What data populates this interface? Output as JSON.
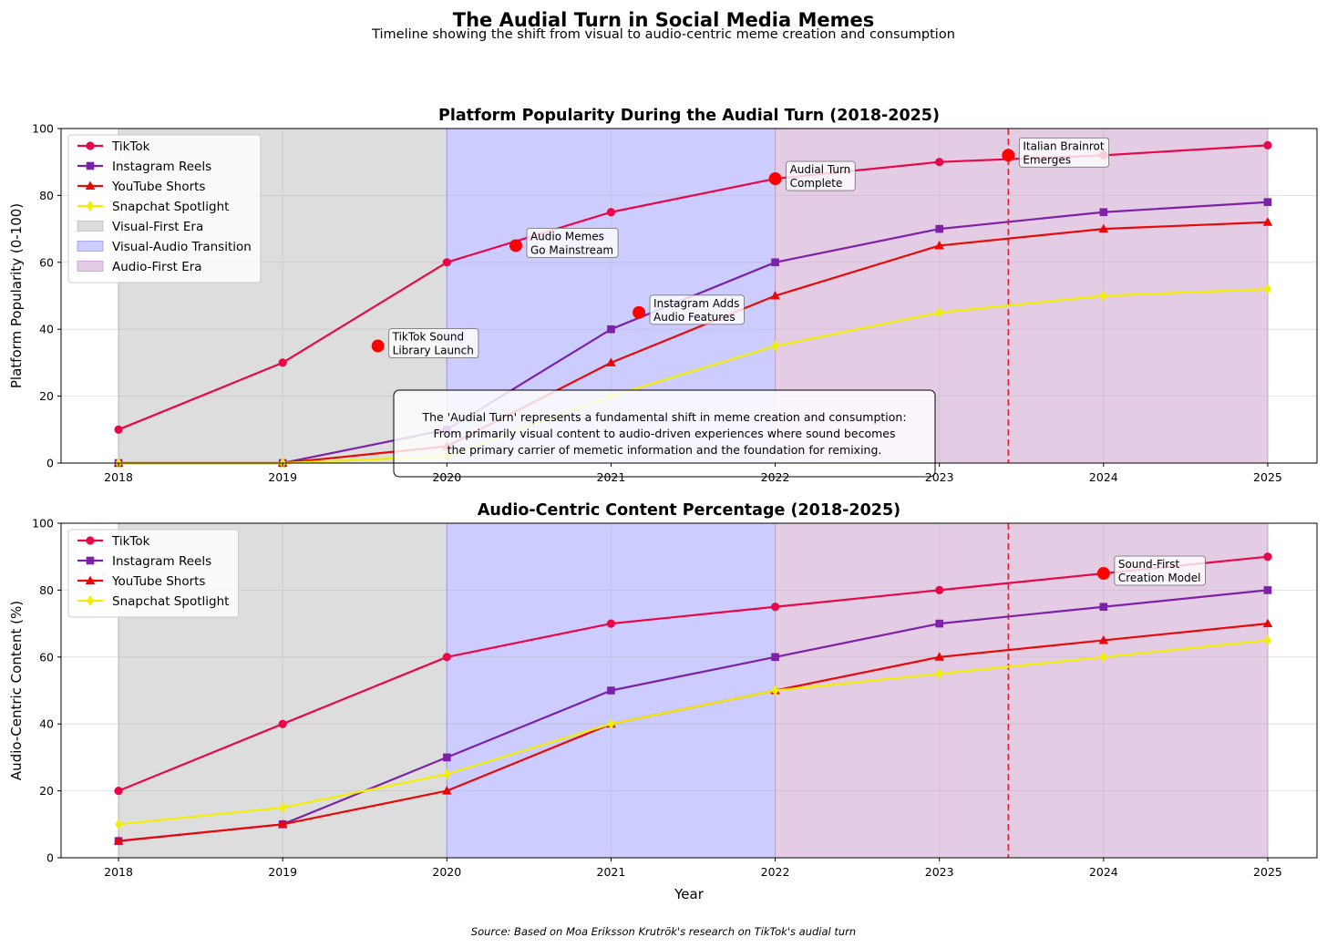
{
  "figure": {
    "title": "The Audial Turn in Social Media Memes",
    "subtitle": "Timeline showing the shift from visual to audio-centric meme creation and consumption",
    "source": "Source: Based on Moa Eriksson Krutrök's research on TikTok's audial turn"
  },
  "eras": [
    {
      "name": "Visual-First Era",
      "start": 2018,
      "end": 2020,
      "color": "#bbbbbb"
    },
    {
      "name": "Visual-Audio Transition",
      "start": 2020,
      "end": 2022,
      "color": "#9999ff"
    },
    {
      "name": "Audio-First Era",
      "start": 2022,
      "end": 2025,
      "color": "#cc99cc"
    }
  ],
  "chart_data": [
    {
      "type": "line",
      "title": "Platform Popularity During the Audial Turn (2018-2025)",
      "xlabel": "",
      "ylabel": "Platform Popularity (0-100)",
      "x": [
        2018,
        2019,
        2020,
        2021,
        2022,
        2023,
        2024,
        2025
      ],
      "xlim": [
        2017.65,
        2025.3
      ],
      "ylim": [
        0,
        100
      ],
      "yticks": [
        0,
        20,
        40,
        60,
        80,
        100
      ],
      "grid": true,
      "legend": "top-left",
      "show_era_legend": true,
      "series": [
        {
          "name": "TikTok",
          "color": "#e8084a",
          "marker": "circle",
          "values": [
            10,
            30,
            60,
            75,
            85,
            90,
            92,
            95
          ]
        },
        {
          "name": "Instagram Reels",
          "color": "#7b22a8",
          "marker": "square",
          "values": [
            0,
            0,
            10,
            40,
            60,
            70,
            75,
            78
          ]
        },
        {
          "name": "YouTube Shorts",
          "color": "#e80808",
          "marker": "triangle",
          "values": [
            0,
            0,
            5,
            30,
            50,
            65,
            70,
            72
          ]
        },
        {
          "name": "Snapchat Spotlight",
          "color": "#f2ee00",
          "marker": "diamond",
          "values": [
            0,
            0,
            2,
            20,
            35,
            45,
            50,
            52
          ]
        }
      ],
      "vline": {
        "x": 2023.42,
        "color": "#e8202a"
      },
      "events": [
        {
          "x": 2019.58,
          "y": 35,
          "label": [
            "TikTok Sound",
            "Library Launch"
          ]
        },
        {
          "x": 2020.42,
          "y": 65,
          "label": [
            "Audio Memes",
            "Go Mainstream"
          ]
        },
        {
          "x": 2021.17,
          "y": 45,
          "label": [
            "Instagram Adds",
            "Audio Features"
          ]
        },
        {
          "x": 2022.0,
          "y": 85,
          "label": [
            "Audial Turn",
            "Complete"
          ]
        },
        {
          "x": 2023.42,
          "y": 92,
          "label": [
            "Italian Brainrot",
            "Emerges"
          ]
        }
      ],
      "note": [
        "The 'Audial Turn' represents a fundamental shift in meme creation and consumption:",
        "From primarily visual content to audio-driven experiences where sound becomes",
        "the primary carrier of memetic information and the foundation for remixing."
      ]
    },
    {
      "type": "line",
      "title": "Audio-Centric Content Percentage (2018-2025)",
      "xlabel": "Year",
      "ylabel": "Audio-Centric Content (%)",
      "x": [
        2018,
        2019,
        2020,
        2021,
        2022,
        2023,
        2024,
        2025
      ],
      "xlim": [
        2017.65,
        2025.3
      ],
      "ylim": [
        0,
        100
      ],
      "yticks": [
        0,
        20,
        40,
        60,
        80,
        100
      ],
      "grid": true,
      "legend": "top-left",
      "show_era_legend": false,
      "series": [
        {
          "name": "TikTok",
          "color": "#e8084a",
          "marker": "circle",
          "values": [
            20,
            40,
            60,
            70,
            75,
            80,
            85,
            90
          ]
        },
        {
          "name": "Instagram Reels",
          "color": "#7b22a8",
          "marker": "square",
          "values": [
            5,
            10,
            30,
            50,
            60,
            70,
            75,
            80
          ]
        },
        {
          "name": "YouTube Shorts",
          "color": "#e80808",
          "marker": "triangle",
          "values": [
            5,
            10,
            20,
            40,
            50,
            60,
            65,
            70
          ]
        },
        {
          "name": "Snapchat Spotlight",
          "color": "#f2ee00",
          "marker": "diamond",
          "values": [
            10,
            15,
            25,
            40,
            50,
            55,
            60,
            65
          ]
        }
      ],
      "vline": {
        "x": 2023.42,
        "color": "#e8202a"
      },
      "events": [
        {
          "x": 2024.0,
          "y": 85,
          "label": [
            "Sound-First",
            "Creation Model"
          ]
        }
      ],
      "note": []
    }
  ]
}
